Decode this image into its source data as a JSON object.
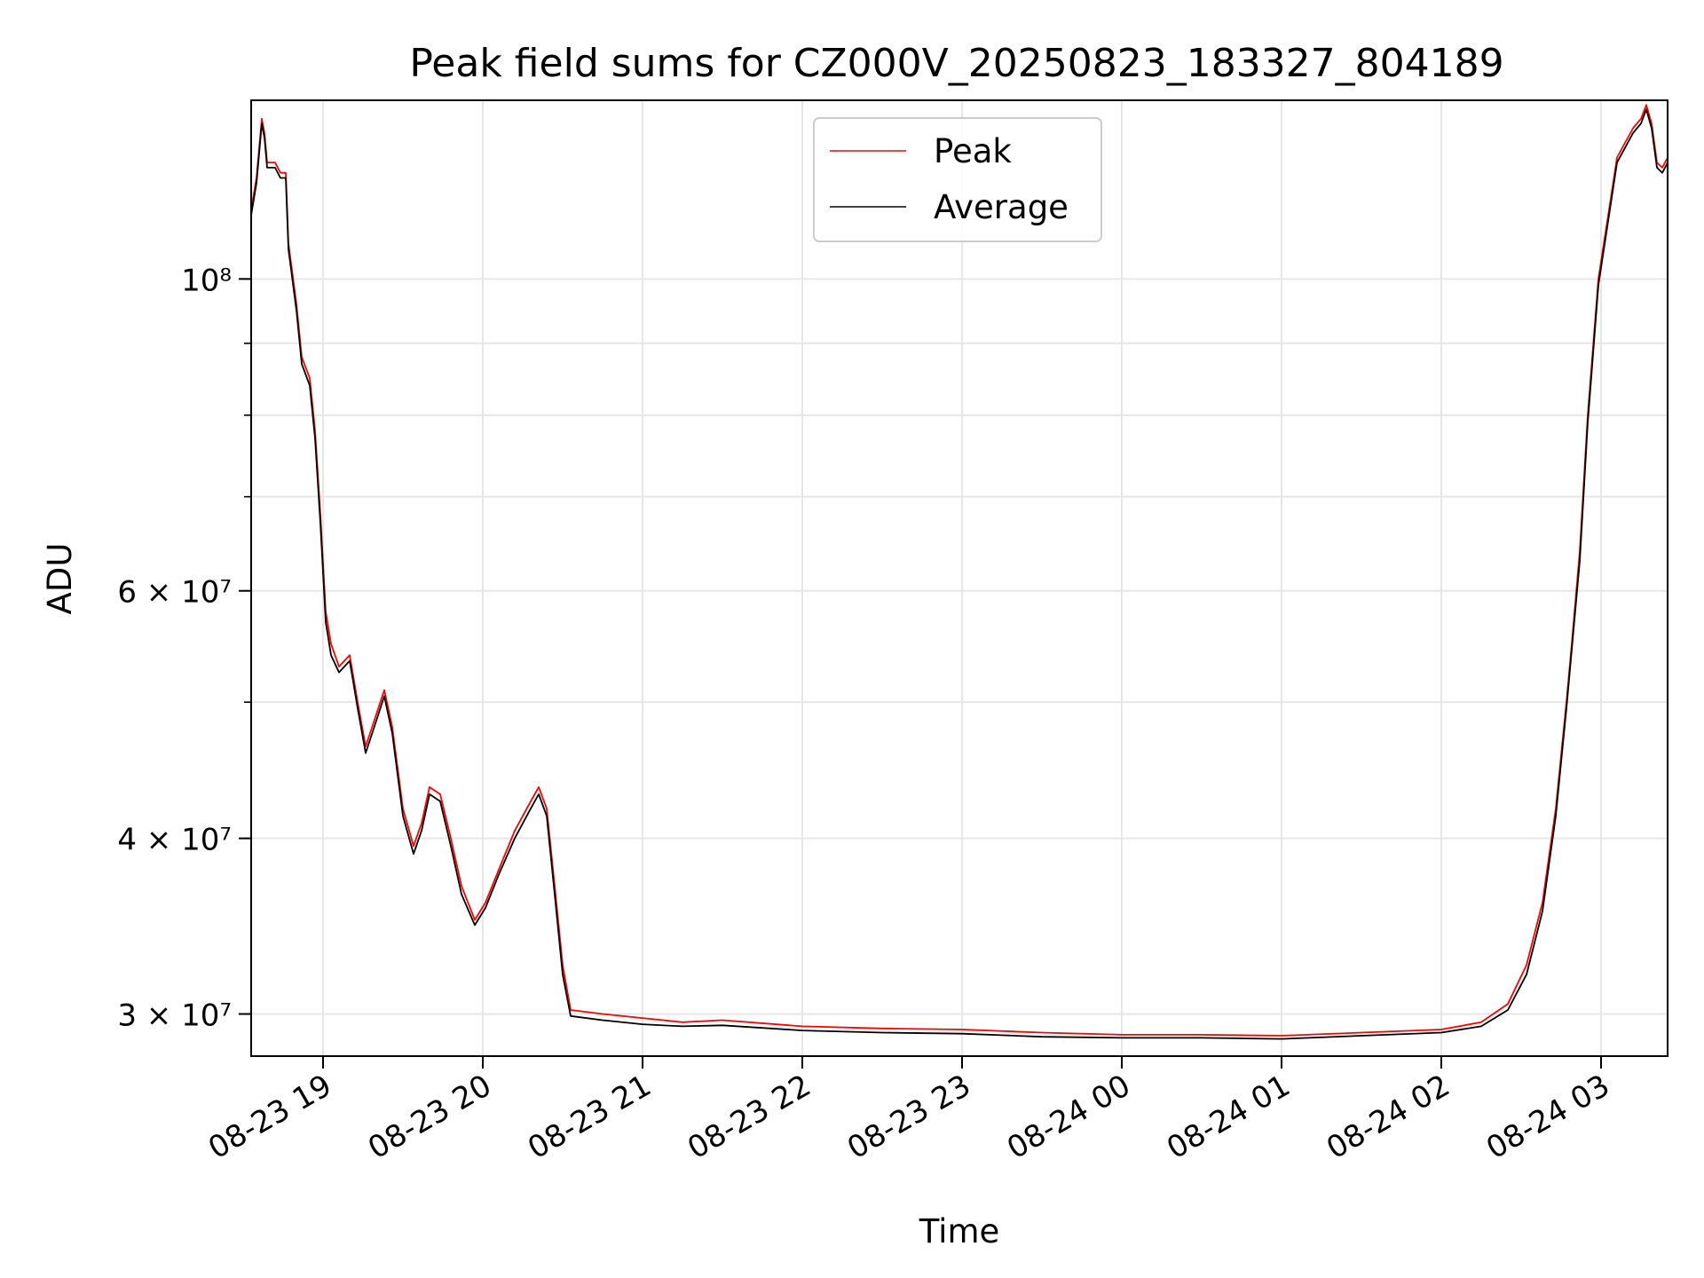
{
  "chart_data": {
    "type": "line",
    "title": "Peak field sums for CZ000V_20250823_183327_804189",
    "xlabel": "Time",
    "ylabel": "ADU",
    "yscale": "log",
    "xlim": [
      "2025-08-23 18:33",
      "2025-08-24 03:25"
    ],
    "ylim": [
      28000000,
      134000000
    ],
    "grid": true,
    "legend_position": "top-center",
    "x_ticks": [
      {
        "t": "2025-08-23 19:00",
        "label": "08-23 19"
      },
      {
        "t": "2025-08-23 20:00",
        "label": "08-23 20"
      },
      {
        "t": "2025-08-23 21:00",
        "label": "08-23 21"
      },
      {
        "t": "2025-08-23 22:00",
        "label": "08-23 22"
      },
      {
        "t": "2025-08-23 23:00",
        "label": "08-23 23"
      },
      {
        "t": "2025-08-24 00:00",
        "label": "08-24 00"
      },
      {
        "t": "2025-08-24 01:00",
        "label": "08-24 01"
      },
      {
        "t": "2025-08-24 02:00",
        "label": "08-24 02"
      },
      {
        "t": "2025-08-24 03:00",
        "label": "08-24 03"
      }
    ],
    "y_ticks": [
      {
        "value": 30000000,
        "label": "3 × 10⁷"
      },
      {
        "value": 40000000,
        "label": "4 × 10⁷"
      },
      {
        "value": 60000000,
        "label": "6 × 10⁷"
      },
      {
        "value": 100000000,
        "label": "10⁸"
      }
    ],
    "series": [
      {
        "name": "Peak",
        "color": "#ff0000",
        "points": [
          [
            "2025-08-23 18:33",
            112000000
          ],
          [
            "2025-08-23 18:35",
            118000000
          ],
          [
            "2025-08-23 18:37",
            130000000
          ],
          [
            "2025-08-23 18:38",
            127000000
          ],
          [
            "2025-08-23 18:39",
            121000000
          ],
          [
            "2025-08-23 18:42",
            121000000
          ],
          [
            "2025-08-23 18:44",
            119000000
          ],
          [
            "2025-08-23 18:46",
            119000000
          ],
          [
            "2025-08-23 18:47",
            106000000
          ],
          [
            "2025-08-23 18:50",
            96000000
          ],
          [
            "2025-08-23 18:52",
            88000000
          ],
          [
            "2025-08-23 18:55",
            85000000
          ],
          [
            "2025-08-23 18:57",
            78000000
          ],
          [
            "2025-08-23 18:59",
            68000000
          ],
          [
            "2025-08-23 19:01",
            58000000
          ],
          [
            "2025-08-23 19:03",
            55000000
          ],
          [
            "2025-08-23 19:06",
            53000000
          ],
          [
            "2025-08-23 19:10",
            54000000
          ],
          [
            "2025-08-23 19:13",
            50000000
          ],
          [
            "2025-08-23 19:16",
            46500000
          ],
          [
            "2025-08-23 19:20",
            49000000
          ],
          [
            "2025-08-23 19:23",
            51000000
          ],
          [
            "2025-08-23 19:26",
            48000000
          ],
          [
            "2025-08-23 19:30",
            42000000
          ],
          [
            "2025-08-23 19:34",
            39500000
          ],
          [
            "2025-08-23 19:37",
            41000000
          ],
          [
            "2025-08-23 19:40",
            43500000
          ],
          [
            "2025-08-23 19:44",
            43000000
          ],
          [
            "2025-08-23 19:48",
            40000000
          ],
          [
            "2025-08-23 19:52",
            37000000
          ],
          [
            "2025-08-23 19:57",
            35000000
          ],
          [
            "2025-08-23 20:01",
            36000000
          ],
          [
            "2025-08-23 20:06",
            38000000
          ],
          [
            "2025-08-23 20:12",
            40500000
          ],
          [
            "2025-08-23 20:18",
            42500000
          ],
          [
            "2025-08-23 20:21",
            43500000
          ],
          [
            "2025-08-23 20:24",
            42000000
          ],
          [
            "2025-08-23 20:27",
            37000000
          ],
          [
            "2025-08-23 20:30",
            32500000
          ],
          [
            "2025-08-23 20:33",
            30200000
          ],
          [
            "2025-08-23 20:45",
            30000000
          ],
          [
            "2025-08-23 21:00",
            29800000
          ],
          [
            "2025-08-23 21:15",
            29600000
          ],
          [
            "2025-08-23 21:30",
            29700000
          ],
          [
            "2025-08-23 22:00",
            29400000
          ],
          [
            "2025-08-23 22:30",
            29300000
          ],
          [
            "2025-08-23 23:00",
            29250000
          ],
          [
            "2025-08-23 23:30",
            29100000
          ],
          [
            "2025-08-24 00:00",
            29000000
          ],
          [
            "2025-08-24 00:30",
            29000000
          ],
          [
            "2025-08-24 01:00",
            28950000
          ],
          [
            "2025-08-24 01:30",
            29100000
          ],
          [
            "2025-08-24 02:00",
            29250000
          ],
          [
            "2025-08-24 02:15",
            29600000
          ],
          [
            "2025-08-24 02:25",
            30500000
          ],
          [
            "2025-08-24 02:32",
            32500000
          ],
          [
            "2025-08-24 02:38",
            36000000
          ],
          [
            "2025-08-24 02:43",
            42000000
          ],
          [
            "2025-08-24 02:47",
            50000000
          ],
          [
            "2025-08-24 02:49",
            55000000
          ],
          [
            "2025-08-24 02:52",
            64000000
          ],
          [
            "2025-08-24 02:55",
            80000000
          ],
          [
            "2025-08-24 02:59",
            100000000
          ],
          [
            "2025-08-24 03:03",
            112000000
          ],
          [
            "2025-08-24 03:06",
            122000000
          ],
          [
            "2025-08-24 03:12",
            128000000
          ],
          [
            "2025-08-24 03:15",
            130000000
          ],
          [
            "2025-08-24 03:17",
            133000000
          ],
          [
            "2025-08-24 03:19",
            129000000
          ],
          [
            "2025-08-24 03:21",
            121000000
          ],
          [
            "2025-08-24 03:23",
            120000000
          ],
          [
            "2025-08-24 03:25",
            122000000
          ]
        ]
      },
      {
        "name": "Average",
        "color": "#000000",
        "points": [
          [
            "2025-08-23 18:33",
            111000000
          ],
          [
            "2025-08-23 18:35",
            117000000
          ],
          [
            "2025-08-23 18:37",
            129000000
          ],
          [
            "2025-08-23 18:38",
            126000000
          ],
          [
            "2025-08-23 18:39",
            120000000
          ],
          [
            "2025-08-23 18:42",
            120000000
          ],
          [
            "2025-08-23 18:44",
            118000000
          ],
          [
            "2025-08-23 18:46",
            118000000
          ],
          [
            "2025-08-23 18:47",
            105000000
          ],
          [
            "2025-08-23 18:50",
            95000000
          ],
          [
            "2025-08-23 18:52",
            87000000
          ],
          [
            "2025-08-23 18:55",
            84000000
          ],
          [
            "2025-08-23 18:57",
            77000000
          ],
          [
            "2025-08-23 18:59",
            67000000
          ],
          [
            "2025-08-23 19:01",
            57000000
          ],
          [
            "2025-08-23 19:03",
            54000000
          ],
          [
            "2025-08-23 19:06",
            52500000
          ],
          [
            "2025-08-23 19:10",
            53500000
          ],
          [
            "2025-08-23 19:13",
            49500000
          ],
          [
            "2025-08-23 19:16",
            46000000
          ],
          [
            "2025-08-23 19:20",
            48500000
          ],
          [
            "2025-08-23 19:23",
            50500000
          ],
          [
            "2025-08-23 19:26",
            47500000
          ],
          [
            "2025-08-23 19:30",
            41500000
          ],
          [
            "2025-08-23 19:34",
            39000000
          ],
          [
            "2025-08-23 19:37",
            40500000
          ],
          [
            "2025-08-23 19:40",
            43000000
          ],
          [
            "2025-08-23 19:44",
            42500000
          ],
          [
            "2025-08-23 19:48",
            39500000
          ],
          [
            "2025-08-23 19:52",
            36500000
          ],
          [
            "2025-08-23 19:57",
            34700000
          ],
          [
            "2025-08-23 20:01",
            35700000
          ],
          [
            "2025-08-23 20:06",
            37700000
          ],
          [
            "2025-08-23 20:12",
            40000000
          ],
          [
            "2025-08-23 20:18",
            42000000
          ],
          [
            "2025-08-23 20:21",
            43000000
          ],
          [
            "2025-08-23 20:24",
            41500000
          ],
          [
            "2025-08-23 20:27",
            36500000
          ],
          [
            "2025-08-23 20:30",
            32000000
          ],
          [
            "2025-08-23 20:33",
            29900000
          ],
          [
            "2025-08-23 20:45",
            29700000
          ],
          [
            "2025-08-23 21:00",
            29500000
          ],
          [
            "2025-08-23 21:15",
            29400000
          ],
          [
            "2025-08-23 21:30",
            29450000
          ],
          [
            "2025-08-23 22:00",
            29200000
          ],
          [
            "2025-08-23 22:30",
            29100000
          ],
          [
            "2025-08-23 23:00",
            29050000
          ],
          [
            "2025-08-23 23:30",
            28900000
          ],
          [
            "2025-08-24 00:00",
            28850000
          ],
          [
            "2025-08-24 00:30",
            28850000
          ],
          [
            "2025-08-24 01:00",
            28800000
          ],
          [
            "2025-08-24 01:30",
            28950000
          ],
          [
            "2025-08-24 02:00",
            29100000
          ],
          [
            "2025-08-24 02:15",
            29400000
          ],
          [
            "2025-08-24 02:25",
            30200000
          ],
          [
            "2025-08-24 02:32",
            32000000
          ],
          [
            "2025-08-24 02:38",
            35500000
          ],
          [
            "2025-08-24 02:43",
            41500000
          ],
          [
            "2025-08-24 02:47",
            49500000
          ],
          [
            "2025-08-24 02:49",
            54500000
          ],
          [
            "2025-08-24 02:52",
            63000000
          ],
          [
            "2025-08-24 02:55",
            79000000
          ],
          [
            "2025-08-24 02:59",
            99000000
          ],
          [
            "2025-08-24 03:03",
            111000000
          ],
          [
            "2025-08-24 03:06",
            121000000
          ],
          [
            "2025-08-24 03:12",
            127000000
          ],
          [
            "2025-08-24 03:15",
            129000000
          ],
          [
            "2025-08-24 03:17",
            132000000
          ],
          [
            "2025-08-24 03:19",
            128000000
          ],
          [
            "2025-08-24 03:21",
            120000000
          ],
          [
            "2025-08-24 03:23",
            119000000
          ],
          [
            "2025-08-24 03:25",
            121000000
          ]
        ]
      }
    ]
  }
}
